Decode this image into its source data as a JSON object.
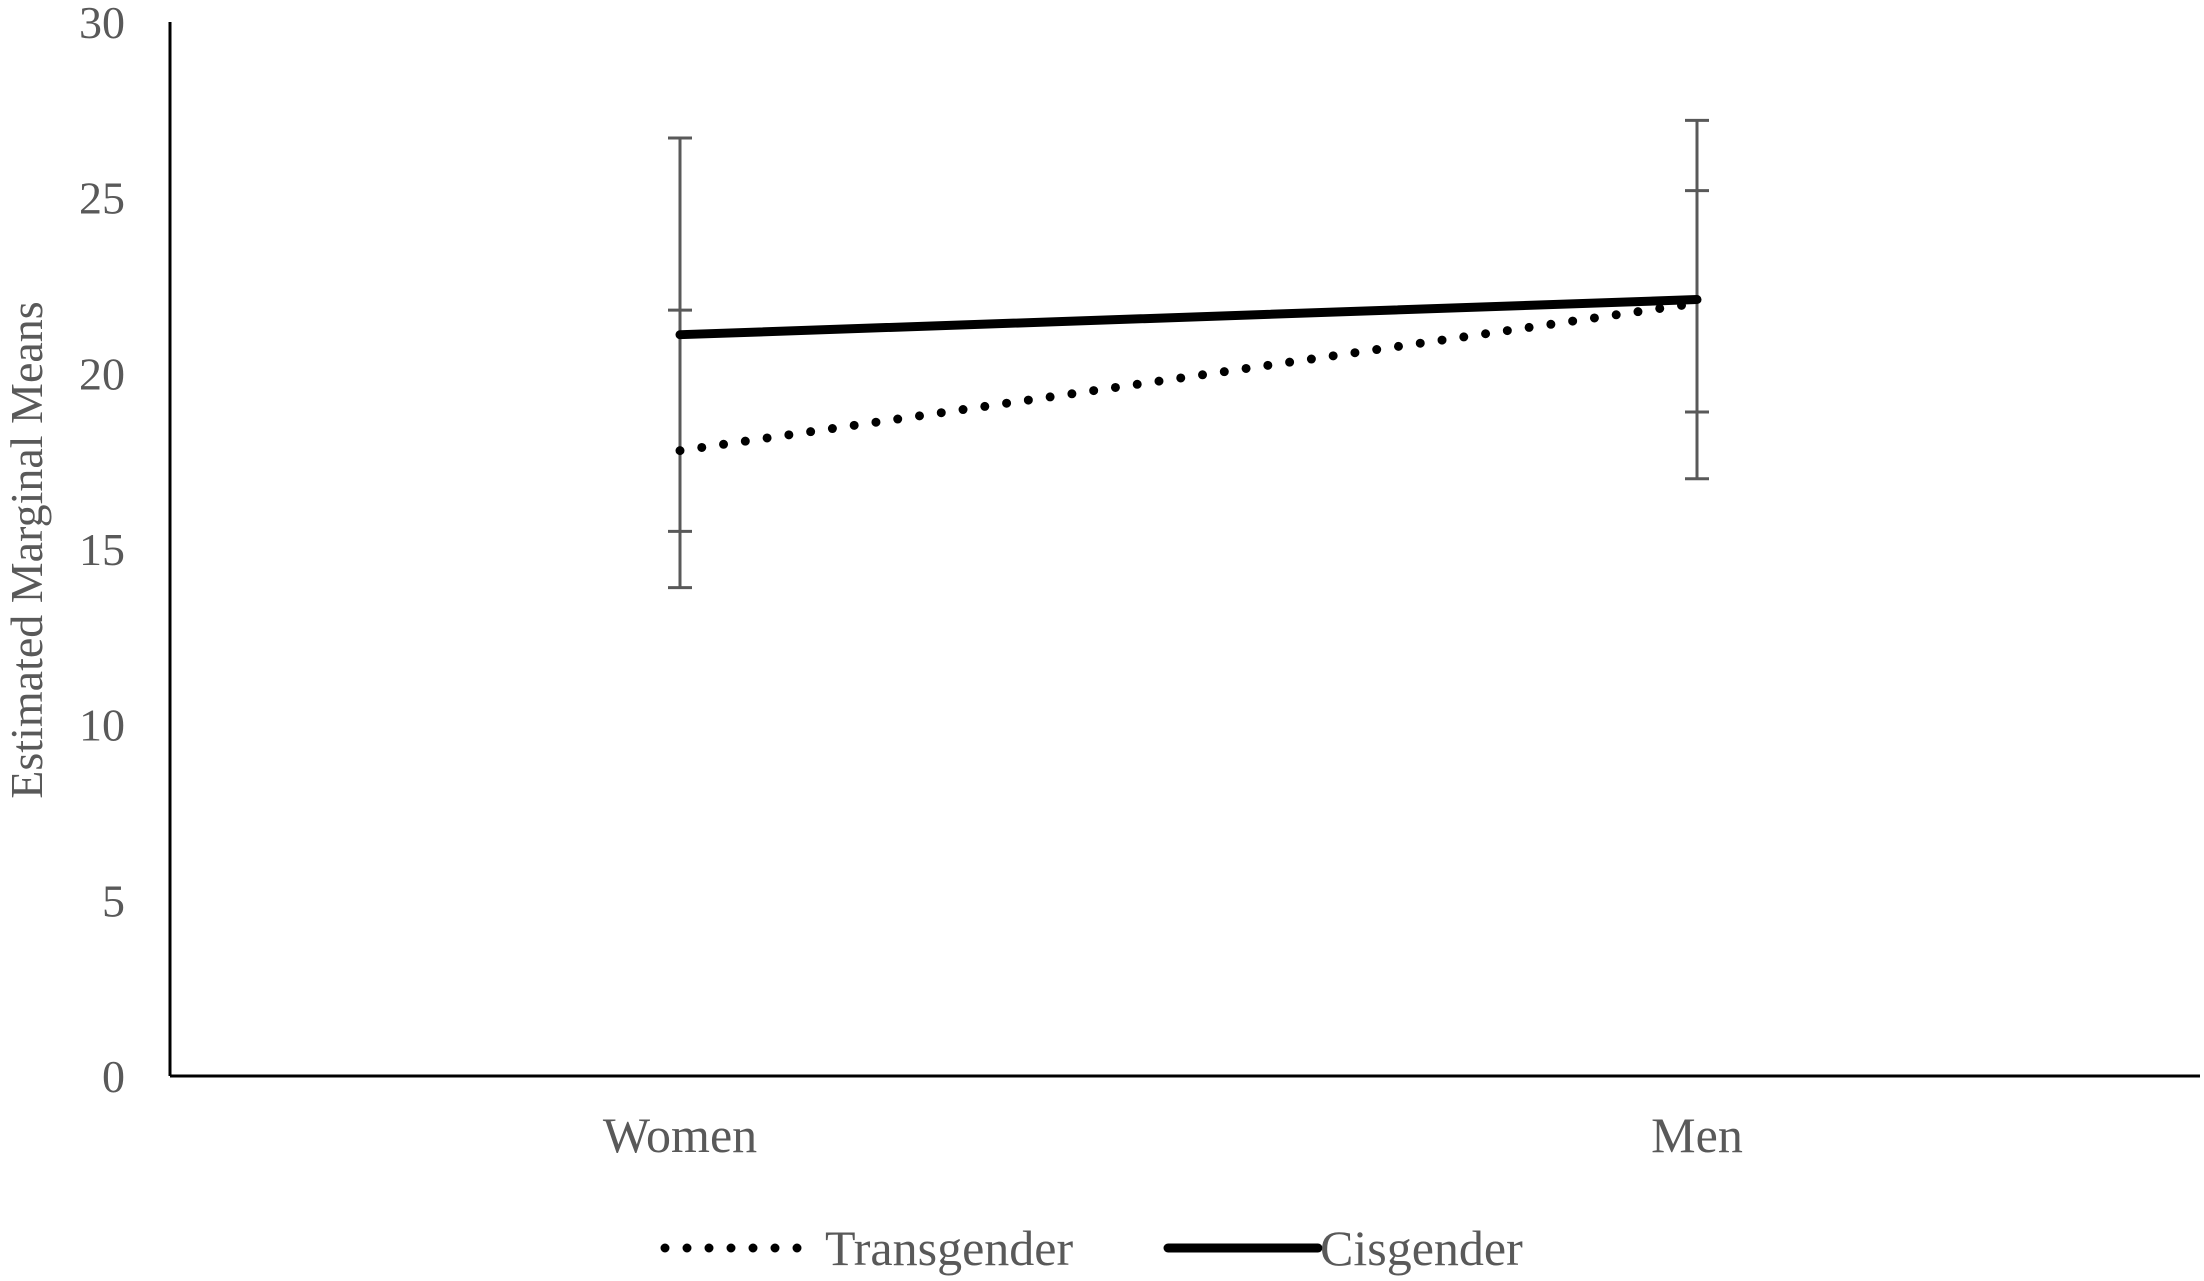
{
  "chart_data": {
    "type": "line",
    "title": "",
    "xlabel": "",
    "ylabel": "Estimated Marginal Means",
    "categories": [
      "Women",
      "Men"
    ],
    "ylim": [
      0,
      30
    ],
    "yticks": [
      0,
      5,
      10,
      15,
      20,
      25,
      30
    ],
    "grid": false,
    "legend_position": "bottom",
    "series": [
      {
        "name": "Transgender",
        "style": "dotted",
        "color": "#000000",
        "values": [
          17.8,
          22.0
        ],
        "error_low": [
          13.9,
          17.0
        ],
        "error_high": [
          26.7,
          27.2
        ]
      },
      {
        "name": "Cisgender",
        "style": "solid",
        "color": "#000000",
        "values": [
          21.1,
          22.1
        ],
        "error_low": [
          15.5,
          18.9
        ],
        "error_high": [
          21.8,
          25.2
        ]
      }
    ],
    "error_bar_color": "#595959"
  }
}
